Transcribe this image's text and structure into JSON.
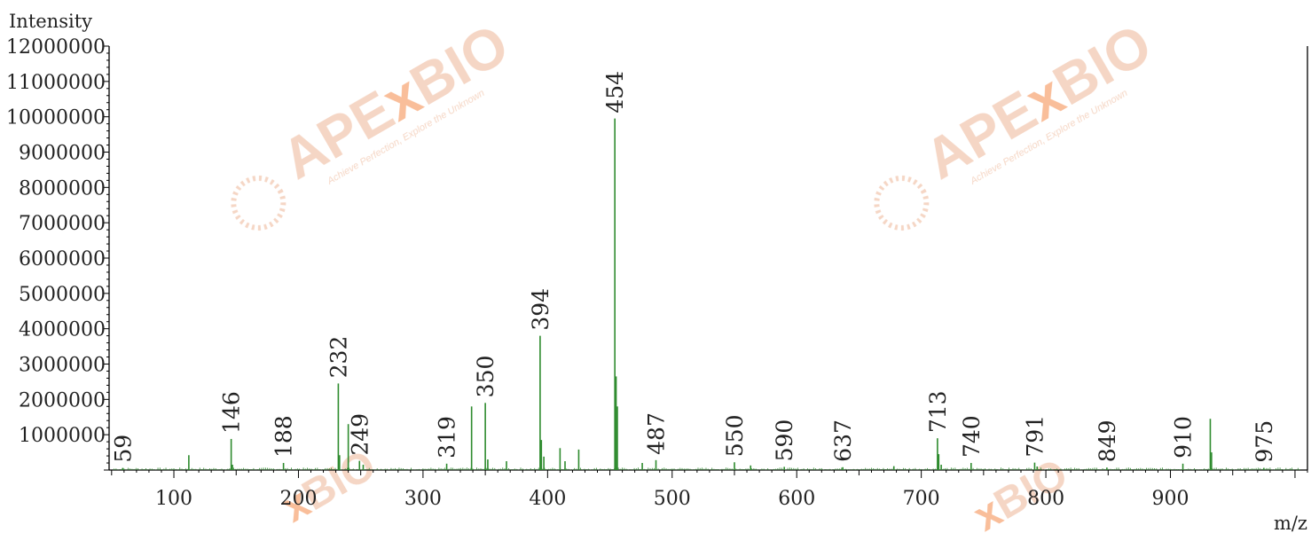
{
  "chart_data": {
    "type": "bar",
    "ylabel": "Intensity",
    "xlabel": "m/z",
    "xlim": [
      48,
      1010
    ],
    "ylim": [
      0,
      12000000
    ],
    "y_ticks": [
      1000000,
      2000000,
      3000000,
      4000000,
      5000000,
      6000000,
      7000000,
      8000000,
      9000000,
      10000000,
      11000000,
      12000000
    ],
    "y_tick_labels": [
      "1000000",
      "2000000",
      "3000000",
      "4000000",
      "5000000",
      "6000000",
      "7000000",
      "8000000",
      "9000000",
      "10000000",
      "11000000",
      "12000000"
    ],
    "x_ticks": [
      100,
      200,
      300,
      400,
      500,
      600,
      700,
      800,
      900
    ],
    "x_tick_labels": [
      "100",
      "200",
      "300",
      "400",
      "500",
      "600",
      "700",
      "800",
      "900"
    ],
    "grid": false,
    "series_color": "#2e8b2e",
    "peaks": [
      {
        "mz": 59,
        "intensity": 60000,
        "label": "59"
      },
      {
        "mz": 112,
        "intensity": 420000,
        "label": ""
      },
      {
        "mz": 146,
        "intensity": 880000,
        "label": "146"
      },
      {
        "mz": 147,
        "intensity": 150000,
        "label": ""
      },
      {
        "mz": 188,
        "intensity": 200000,
        "label": "188"
      },
      {
        "mz": 232,
        "intensity": 2450000,
        "label": "232"
      },
      {
        "mz": 233,
        "intensity": 420000,
        "label": ""
      },
      {
        "mz": 240,
        "intensity": 1300000,
        "label": ""
      },
      {
        "mz": 249,
        "intensity": 260000,
        "label": "249"
      },
      {
        "mz": 252,
        "intensity": 150000,
        "label": ""
      },
      {
        "mz": 319,
        "intensity": 180000,
        "label": "319"
      },
      {
        "mz": 339,
        "intensity": 1800000,
        "label": ""
      },
      {
        "mz": 350,
        "intensity": 1900000,
        "label": "350"
      },
      {
        "mz": 352,
        "intensity": 300000,
        "label": ""
      },
      {
        "mz": 367,
        "intensity": 250000,
        "label": ""
      },
      {
        "mz": 394,
        "intensity": 3800000,
        "label": "394"
      },
      {
        "mz": 395,
        "intensity": 850000,
        "label": ""
      },
      {
        "mz": 397,
        "intensity": 380000,
        "label": ""
      },
      {
        "mz": 410,
        "intensity": 620000,
        "label": ""
      },
      {
        "mz": 414,
        "intensity": 250000,
        "label": ""
      },
      {
        "mz": 425,
        "intensity": 580000,
        "label": ""
      },
      {
        "mz": 454,
        "intensity": 9950000,
        "label": "454"
      },
      {
        "mz": 455,
        "intensity": 2650000,
        "label": ""
      },
      {
        "mz": 456,
        "intensity": 1800000,
        "label": ""
      },
      {
        "mz": 476,
        "intensity": 200000,
        "label": ""
      },
      {
        "mz": 487,
        "intensity": 280000,
        "label": "487"
      },
      {
        "mz": 550,
        "intensity": 220000,
        "label": "550"
      },
      {
        "mz": 563,
        "intensity": 130000,
        "label": ""
      },
      {
        "mz": 590,
        "intensity": 90000,
        "label": "590"
      },
      {
        "mz": 637,
        "intensity": 80000,
        "label": "637"
      },
      {
        "mz": 678,
        "intensity": 110000,
        "label": ""
      },
      {
        "mz": 713,
        "intensity": 900000,
        "label": "713"
      },
      {
        "mz": 714,
        "intensity": 450000,
        "label": ""
      },
      {
        "mz": 716,
        "intensity": 150000,
        "label": ""
      },
      {
        "mz": 740,
        "intensity": 200000,
        "label": "740"
      },
      {
        "mz": 791,
        "intensity": 210000,
        "label": "791"
      },
      {
        "mz": 793,
        "intensity": 100000,
        "label": ""
      },
      {
        "mz": 849,
        "intensity": 70000,
        "label": "849"
      },
      {
        "mz": 910,
        "intensity": 180000,
        "label": "910"
      },
      {
        "mz": 932,
        "intensity": 1450000,
        "label": ""
      },
      {
        "mz": 933,
        "intensity": 500000,
        "label": ""
      },
      {
        "mz": 975,
        "intensity": 60000,
        "label": "975"
      }
    ]
  },
  "watermark": {
    "brand_main": "APE",
    "brand_x": "x",
    "brand_end": "BIO",
    "tagline": "Achieve Perfection, Explore the Unknown",
    "color": "#f2c9b2"
  }
}
